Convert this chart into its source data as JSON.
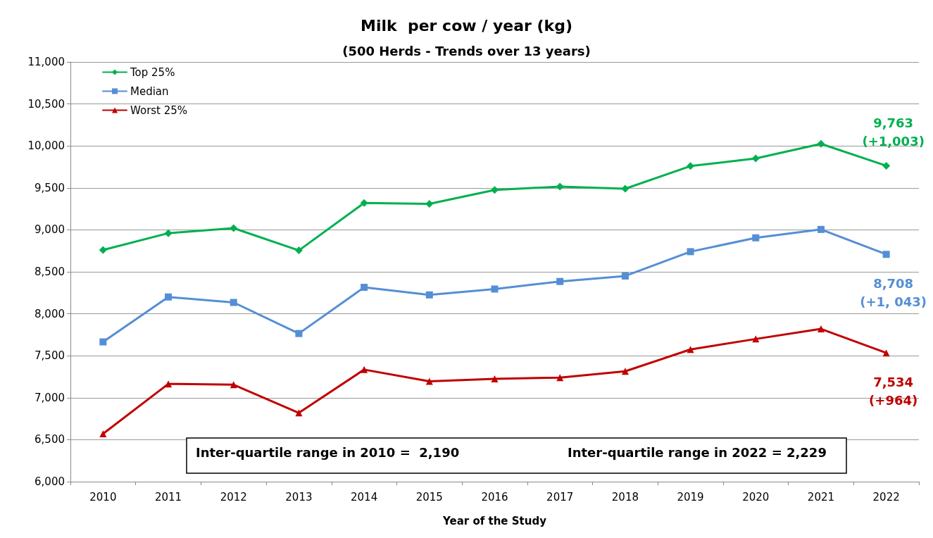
{
  "chart_data": {
    "type": "line",
    "title": "Milk  per cow / year (kg)",
    "subtitle": "(500 Herds - Trends over 13 years)",
    "xlabel": "Year of the Study",
    "categories": [
      "2010",
      "2011",
      "2012",
      "2013",
      "2014",
      "2015",
      "2016",
      "2017",
      "2018",
      "2019",
      "2020",
      "2021",
      "2022"
    ],
    "series": [
      {
        "name": "Top 25%",
        "color": "#00b050",
        "marker": "diamond",
        "values": [
          8760,
          8960,
          9020,
          8755,
          9320,
          9310,
          9475,
          9515,
          9490,
          9760,
          9850,
          10025,
          9763
        ]
      },
      {
        "name": "Median",
        "color": "#558ed5",
        "marker": "square",
        "values": [
          7665,
          8200,
          8135,
          7765,
          8315,
          8225,
          8295,
          8385,
          8450,
          8740,
          8905,
          9005,
          8708
        ]
      },
      {
        "name": "Worst 25%",
        "color": "#c00000",
        "marker": "triangle",
        "values": [
          6570,
          7165,
          7155,
          6820,
          7335,
          7195,
          7225,
          7240,
          7315,
          7575,
          7700,
          7820,
          7534
        ]
      }
    ],
    "ylim": [
      6000,
      11000
    ],
    "yticks": [
      {
        "value": 6000,
        "label": "6,000"
      },
      {
        "value": 6500,
        "label": "6,500"
      },
      {
        "value": 7000,
        "label": "7,000"
      },
      {
        "value": 7500,
        "label": "7,500"
      },
      {
        "value": 8000,
        "label": "8,000"
      },
      {
        "value": 8500,
        "label": "8,500"
      },
      {
        "value": 9000,
        "label": "9,000"
      },
      {
        "value": 9500,
        "label": "9,500"
      },
      {
        "value": 10000,
        "label": "10,000"
      },
      {
        "value": 10500,
        "label": "10,500"
      },
      {
        "value": 11000,
        "label": "11,000"
      }
    ],
    "grid": "y",
    "legend": "top left",
    "line_style": "solid",
    "annotations": [
      {
        "text": "9,763\n(+1,003)",
        "x": "2022",
        "y": 9763
      },
      {
        "text": "8,708\n(+1, 043)",
        "x": "2022",
        "y": 8708
      },
      {
        "text": "7,534\n(+964)",
        "x": "2022",
        "y": 7534
      },
      "Inter-quartile range in 2010 =  2,190",
      "Inter-quartile range in 2022 = 2,229"
    ]
  }
}
